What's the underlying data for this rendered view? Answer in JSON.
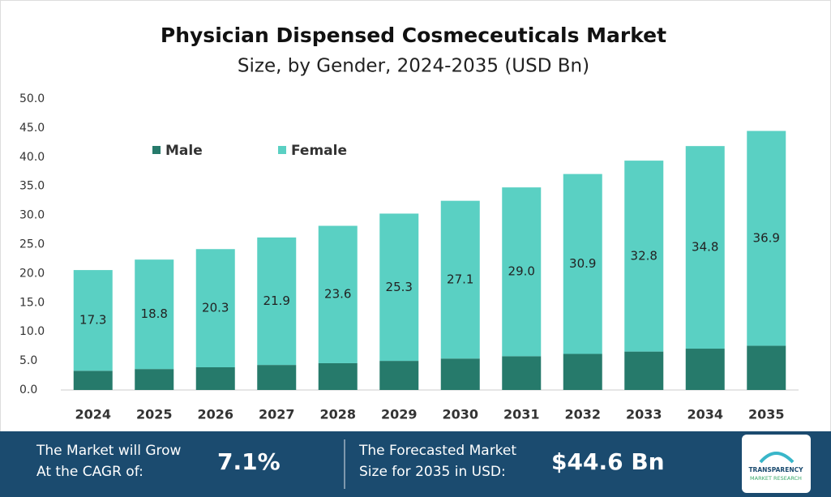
{
  "chart_data": {
    "type": "stacked_bar",
    "title": "Physician Dispensed Cosmeceuticals Market",
    "subtitle": "Size, by Gender, 2024-2035 (USD Bn)",
    "categories": [
      "2024",
      "2025",
      "2026",
      "2027",
      "2028",
      "2029",
      "2030",
      "2031",
      "2032",
      "2033",
      "2034",
      "2035"
    ],
    "series": [
      {
        "name": "Male",
        "color": "#267a6b",
        "values": [
          3.3,
          3.6,
          3.9,
          4.3,
          4.6,
          5.0,
          5.4,
          5.8,
          6.2,
          6.6,
          7.1,
          7.6
        ]
      },
      {
        "name": "Female",
        "color": "#5ad0c3",
        "values": [
          17.3,
          18.8,
          20.3,
          21.9,
          23.6,
          25.3,
          27.1,
          29.0,
          30.9,
          32.8,
          34.8,
          36.9
        ],
        "value_labels": [
          "17.3",
          "18.8",
          "20.3",
          "21.9",
          "23.6",
          "25.3",
          "27.1",
          "29.0",
          "30.9",
          "32.8",
          "34.8",
          "36.9"
        ]
      }
    ],
    "ylim": [
      0,
      50
    ],
    "yticks": [
      {
        "value": 0,
        "label": "0.0"
      },
      {
        "value": 5,
        "label": "5.0"
      },
      {
        "value": 10,
        "label": "10.0"
      },
      {
        "value": 15,
        "label": "15.0"
      },
      {
        "value": 20,
        "label": "20.0"
      },
      {
        "value": 25,
        "label": "25.0"
      },
      {
        "value": 30,
        "label": "30.0"
      },
      {
        "value": 35,
        "label": "35.0"
      },
      {
        "value": 40,
        "label": "40.0"
      },
      {
        "value": 45,
        "label": "45.0"
      },
      {
        "value": 50,
        "label": "50.0"
      }
    ],
    "grid": false,
    "legend": "top-left"
  },
  "footer": {
    "cagr_text_1": "The Market will Grow",
    "cagr_text_2": "At the CAGR of:",
    "cagr_value": "7.1%",
    "forecast_text_1": "The Forecasted Market",
    "forecast_text_2": "Size for 2035 in USD:",
    "forecast_value": "$44.6 Bn",
    "logo_1": "TRANSPARENCY",
    "logo_2": "MARKET RESEARCH"
  }
}
